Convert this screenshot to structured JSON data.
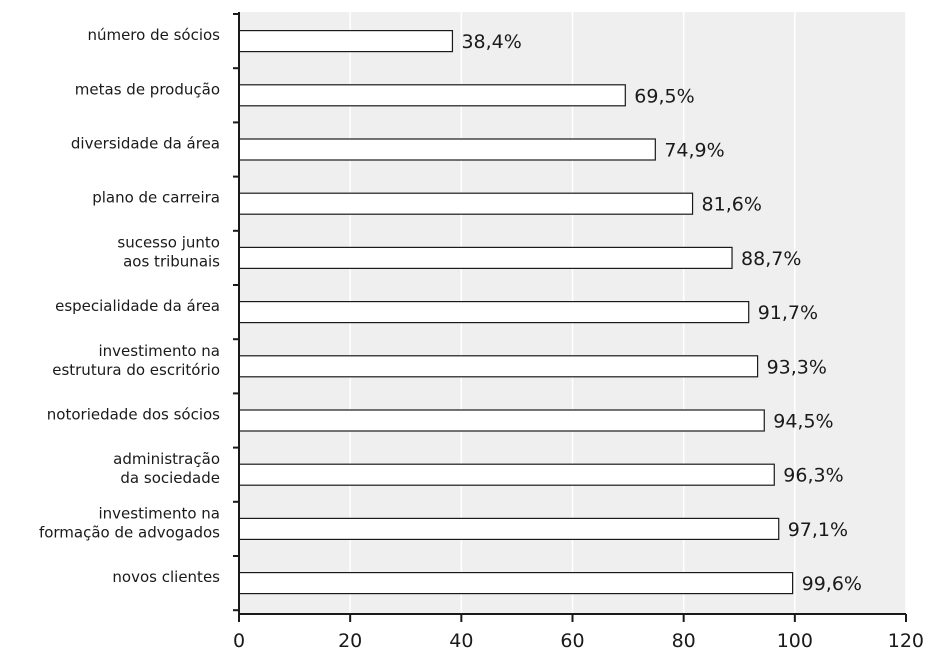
{
  "chart_data": {
    "type": "bar",
    "orientation": "horizontal",
    "categories": [
      [
        "número de sócios"
      ],
      [
        "metas de produção"
      ],
      [
        "diversidade da área"
      ],
      [
        "plano de carreira"
      ],
      [
        "sucesso junto",
        "aos tribunais"
      ],
      [
        "especialidade da área"
      ],
      [
        "investimento na",
        "estrutura do escritório"
      ],
      [
        "notoriedade dos sócios"
      ],
      [
        "administração",
        "da sociedade"
      ],
      [
        "investimento na",
        "formação de advogados"
      ],
      [
        "novos clientes"
      ]
    ],
    "values": [
      38.4,
      69.5,
      74.9,
      81.6,
      88.7,
      91.7,
      93.3,
      94.5,
      96.3,
      97.1,
      99.6
    ],
    "value_labels": [
      "38,4%",
      "69,5%",
      "74,9%",
      "81,6%",
      "88,7%",
      "91,7%",
      "93,3%",
      "94,5%",
      "96,3%",
      "97,1%",
      "99,6%"
    ],
    "x_ticks": [
      0,
      20,
      40,
      60,
      80,
      100,
      120
    ],
    "xlim": [
      0,
      120
    ],
    "title": "",
    "xlabel": "",
    "ylabel": "",
    "grid": "vertical",
    "legend": "none"
  },
  "colors": {
    "plot_background": "#efefef",
    "bar_fill": "#ffffff",
    "bar_stroke": "#1a1a1a",
    "gridline": "#ffffff",
    "text": "#1a1a1a"
  }
}
